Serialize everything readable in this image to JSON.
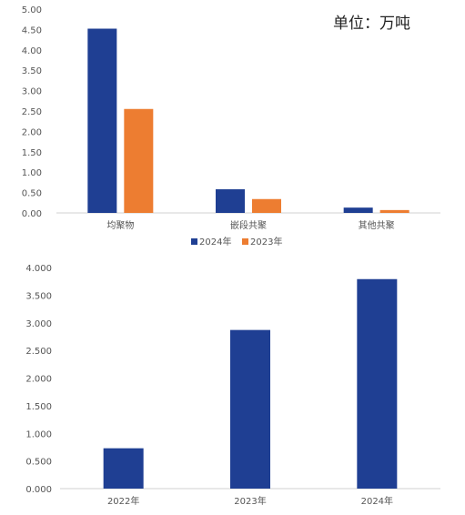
{
  "chart_data": [
    {
      "type": "bar",
      "unit_label": "单位：万吨",
      "categories": [
        "均聚物",
        "嵌段共聚",
        "其他共聚"
      ],
      "series": [
        {
          "name": "2024年",
          "color": "#1f3f93",
          "values": [
            4.52,
            0.58,
            0.13
          ]
        },
        {
          "name": "2023年",
          "color": "#ed7d31",
          "values": [
            2.55,
            0.34,
            0.07
          ]
        }
      ],
      "ylim": [
        0,
        5
      ],
      "yticks": [
        "0.00",
        "0.50",
        "1.00",
        "1.50",
        "2.00",
        "2.50",
        "3.00",
        "3.50",
        "4.00",
        "4.50",
        "5.00"
      ],
      "grid": false,
      "legend_position": "bottom"
    },
    {
      "type": "bar",
      "categories": [
        "2022年",
        "2023年",
        "2024年"
      ],
      "series": [
        {
          "color": "#1f3f93",
          "values": [
            0.73,
            2.87,
            3.79
          ]
        }
      ],
      "ylim": [
        0,
        4
      ],
      "yticks": [
        "0.000",
        "0.500",
        "1.000",
        "1.500",
        "2.000",
        "2.500",
        "3.000",
        "3.500",
        "4.000"
      ],
      "grid": false
    }
  ]
}
